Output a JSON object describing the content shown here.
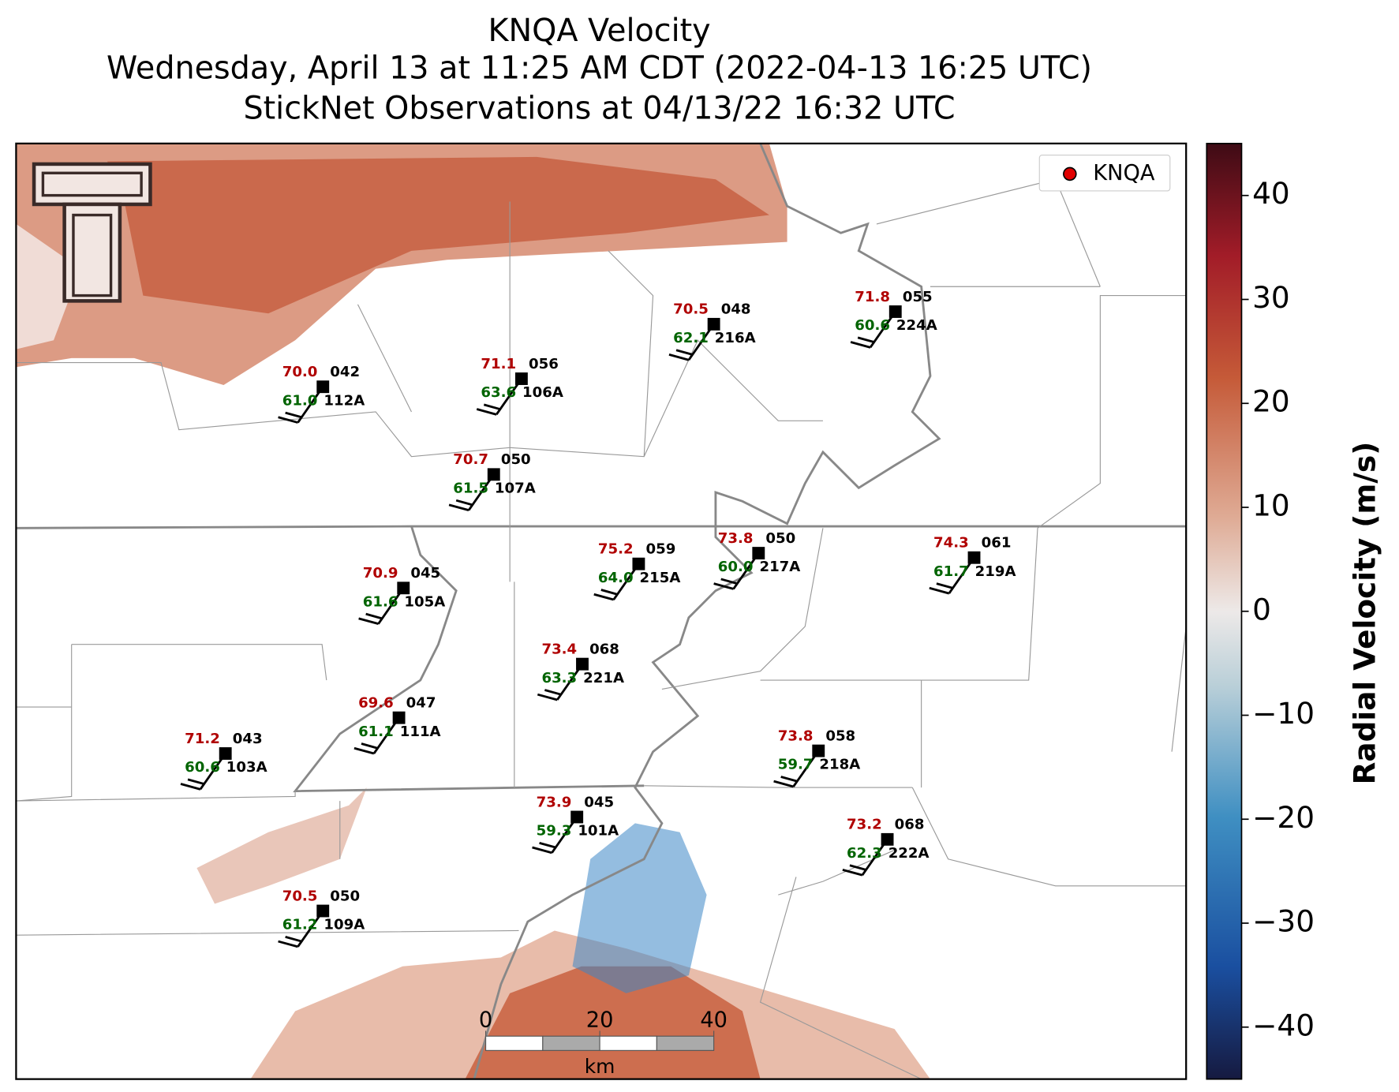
{
  "header": {
    "title": "KNQA Velocity",
    "subtitle": "Wednesday, April 13 at 11:25 AM CDT (2022-04-13 16:25 UTC)",
    "subtitle2": "StickNet Observations at 04/13/22 16:32 UTC"
  },
  "legend": {
    "label": "KNQA",
    "color": "#e00000"
  },
  "colorbar": {
    "label": "Radial Velocity (m/s)",
    "clim": [
      -45,
      45
    ],
    "ticks": [
      {
        "value": -40,
        "label": "−40"
      },
      {
        "value": -30,
        "label": "−30"
      },
      {
        "value": -20,
        "label": "−20"
      },
      {
        "value": -10,
        "label": "−10"
      },
      0,
      10,
      20,
      30,
      40
    ]
  },
  "scale_bar": {
    "ticks": [
      0,
      20,
      40
    ],
    "unit": "km"
  },
  "stations": [
    {
      "temp": "70.0",
      "dew": "61.0",
      "obs": "042",
      "id": "112A"
    },
    {
      "temp": "71.1",
      "dew": "63.6",
      "obs": "056",
      "id": "106A"
    },
    {
      "temp": "70.5",
      "dew": "62.1",
      "obs": "048",
      "id": "216A"
    },
    {
      "temp": "71.8",
      "dew": "60.6",
      "obs": "055",
      "id": "224A"
    },
    {
      "temp": "70.7",
      "dew": "61.5",
      "obs": "050",
      "id": "107A"
    },
    {
      "temp": "75.2",
      "dew": "64.0",
      "obs": "059",
      "id": "215A"
    },
    {
      "temp": "73.8",
      "dew": "60.0",
      "obs": "050",
      "id": "217A"
    },
    {
      "temp": "74.3",
      "dew": "61.7",
      "obs": "061",
      "id": "219A"
    },
    {
      "temp": "70.9",
      "dew": "61.6",
      "obs": "045",
      "id": "105A"
    },
    {
      "temp": "73.4",
      "dew": "63.3",
      "obs": "068",
      "id": "221A"
    },
    {
      "temp": "69.6",
      "dew": "61.1",
      "obs": "047",
      "id": "111A"
    },
    {
      "temp": "71.2",
      "dew": "60.6",
      "obs": "043",
      "id": "103A"
    },
    {
      "temp": "73.8",
      "dew": "59.7",
      "obs": "058",
      "id": "218A"
    },
    {
      "temp": "73.9",
      "dew": "59.3",
      "obs": "045",
      "id": "101A"
    },
    {
      "temp": "73.2",
      "dew": "62.3",
      "obs": "068",
      "id": "222A"
    },
    {
      "temp": "70.5",
      "dew": "61.2",
      "obs": "050",
      "id": "109A"
    }
  ]
}
